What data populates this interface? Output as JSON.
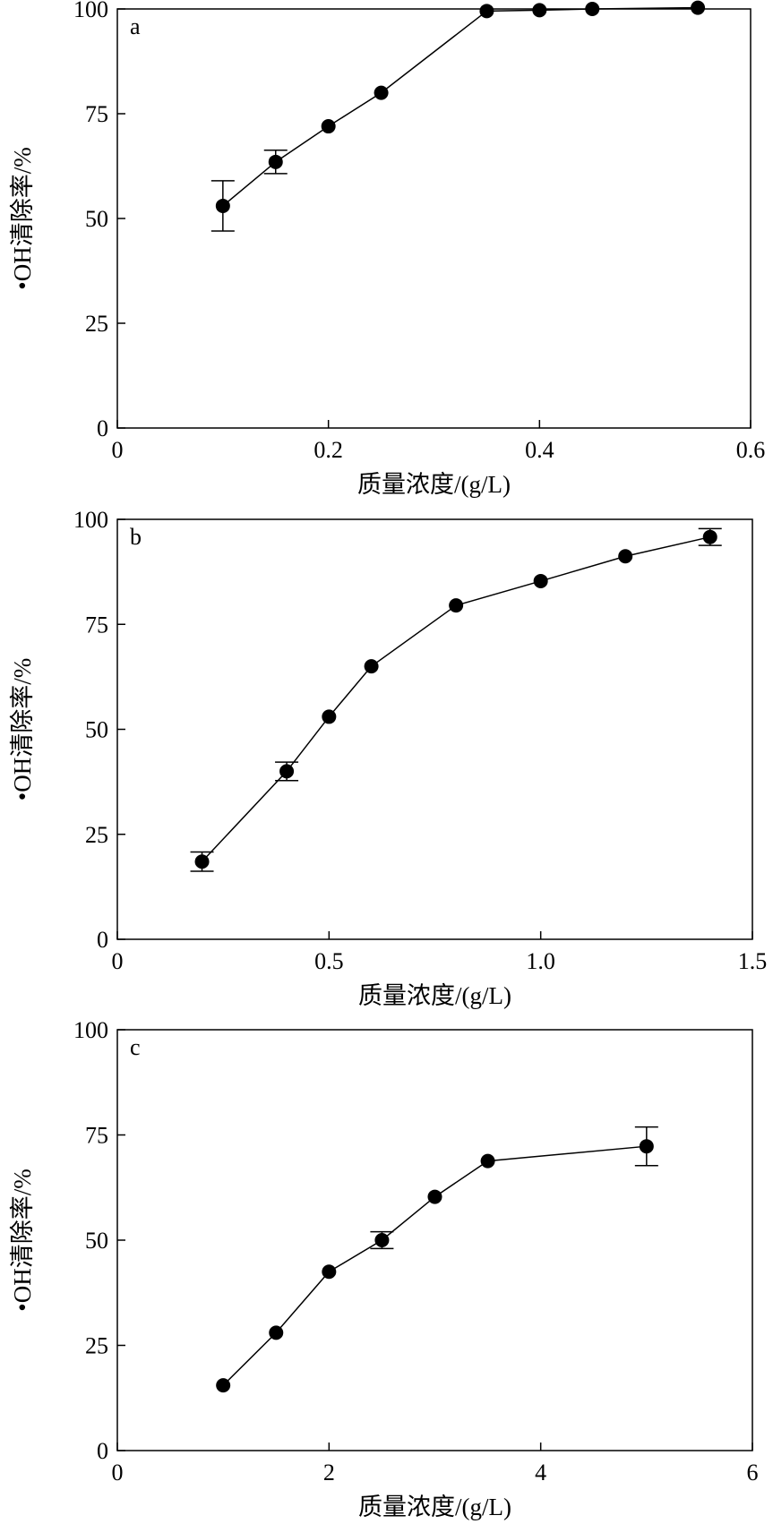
{
  "chart_data": [
    {
      "type": "scatter",
      "panel": "a",
      "xlabel": "质量浓度/(g/L)",
      "ylabel": "•OH清除率/%",
      "xlim": [
        0,
        0.6
      ],
      "ylim": [
        0,
        100
      ],
      "xticks": [
        0,
        0.2,
        0.4,
        0.6
      ],
      "xtick_labels": [
        "0",
        "0.2",
        "0.4",
        "0.6"
      ],
      "yticks": [
        0,
        25,
        50,
        75,
        100
      ],
      "ytick_labels": [
        "0",
        "25",
        "50",
        "75",
        "100"
      ],
      "grid": false,
      "series": [
        {
          "x": [
            0.1,
            0.15,
            0.2,
            0.25,
            0.35,
            0.4,
            0.45,
            0.55
          ],
          "y": [
            53,
            63.5,
            72,
            80,
            99.5,
            99.7,
            100,
            100.3
          ],
          "error": [
            6,
            2.8,
            0,
            0,
            0,
            0,
            0,
            0
          ]
        }
      ]
    },
    {
      "type": "scatter",
      "panel": "b",
      "xlabel": "质量浓度/(g/L)",
      "ylabel": "•OH清除率/%",
      "xlim": [
        0,
        1.5
      ],
      "ylim": [
        0,
        100
      ],
      "xticks": [
        0,
        0.5,
        1.0,
        1.5
      ],
      "xtick_labels": [
        "0",
        "0.5",
        "1.0",
        "1.5"
      ],
      "yticks": [
        0,
        25,
        50,
        75,
        100
      ],
      "ytick_labels": [
        "0",
        "25",
        "50",
        "75",
        "100"
      ],
      "grid": false,
      "series": [
        {
          "x": [
            0.2,
            0.4,
            0.5,
            0.6,
            0.8,
            1.0,
            1.2,
            1.4
          ],
          "y": [
            18.5,
            40,
            53,
            65,
            79.5,
            85.3,
            91.2,
            95.8
          ],
          "error": [
            2.3,
            2.2,
            0,
            0,
            0,
            0,
            0,
            2
          ]
        }
      ]
    },
    {
      "type": "scatter",
      "panel": "c",
      "xlabel": "质量浓度/(g/L)",
      "ylabel": "•OH清除率/%",
      "xlim": [
        0,
        6
      ],
      "ylim": [
        0,
        100
      ],
      "xticks": [
        0,
        2,
        4,
        6
      ],
      "xtick_labels": [
        "0",
        "2",
        "4",
        "6"
      ],
      "yticks": [
        0,
        25,
        50,
        75,
        100
      ],
      "ytick_labels": [
        "0",
        "25",
        "50",
        "75",
        "100"
      ],
      "grid": false,
      "series": [
        {
          "x": [
            1.0,
            1.5,
            2.0,
            2.5,
            3.0,
            3.5,
            5.0
          ],
          "y": [
            15.5,
            28,
            42.5,
            50,
            60.3,
            68.8,
            72.3
          ],
          "error": [
            0,
            0,
            0,
            2,
            0,
            0,
            4.6
          ]
        }
      ]
    }
  ]
}
